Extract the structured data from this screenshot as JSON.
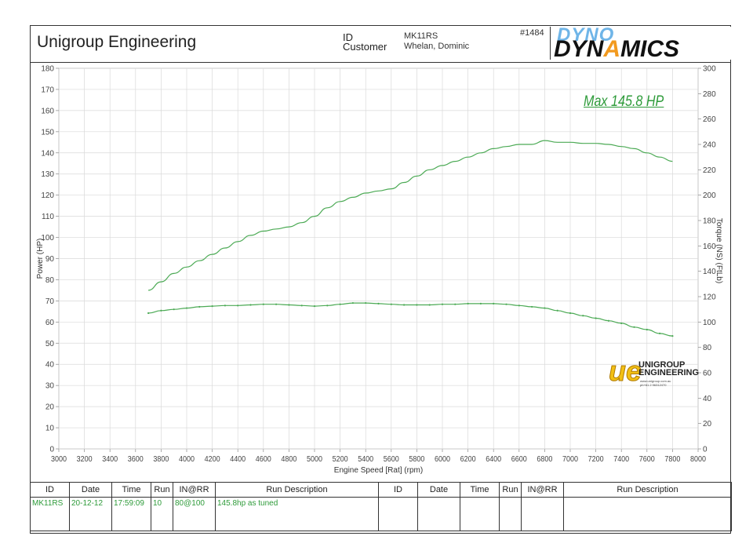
{
  "header": {
    "company": "Unigroup Engineering",
    "id_label": "ID",
    "customer_label": "Customer",
    "id_value": "MK11RS",
    "customer_value": "Whelan, Dominic",
    "run_number": "#1484",
    "logo_top": "DYNO",
    "logo_bottom_a": "DYN",
    "logo_bottom_b": "A",
    "logo_bottom_c": "MICS"
  },
  "annotation": {
    "max_label": "Max 145.8 HP"
  },
  "brand_logo": {
    "mark": "ue",
    "name_line1": "UNIGROUP",
    "name_line2": "ENGINEERING",
    "web": "www.unigroup.com.au",
    "phone": "ph+61 2 96312470"
  },
  "colors": {
    "curve": "#4caa55",
    "grid": "#d9d9d9",
    "axis_text": "#444444",
    "accent_green": "#2e9b3a"
  },
  "chart_data": {
    "type": "line",
    "xlabel": "Engine Speed [Rat] (rpm)",
    "ylabel": "Power (HP)",
    "y2label": "Torque (NS) (FtLb)",
    "xlim": [
      3000,
      8000
    ],
    "ylim": [
      0,
      180
    ],
    "y2lim": [
      0,
      300
    ],
    "grid": true,
    "x_ticks": [
      3000,
      3200,
      3400,
      3600,
      3800,
      4000,
      4200,
      4400,
      4600,
      4800,
      5000,
      5200,
      5400,
      5600,
      5800,
      6000,
      6200,
      6400,
      6600,
      6800,
      7000,
      7200,
      7400,
      7600,
      7800,
      8000
    ],
    "y_ticks": [
      0,
      10,
      20,
      30,
      40,
      50,
      60,
      70,
      80,
      90,
      100,
      110,
      120,
      130,
      140,
      150,
      160,
      170,
      180
    ],
    "y2_ticks": [
      0,
      20,
      40,
      60,
      80,
      100,
      120,
      140,
      160,
      180,
      200,
      220,
      240,
      260,
      280,
      300
    ],
    "series": [
      {
        "axis": "left",
        "x": [
          3700,
          3800,
          3900,
          4000,
          4100,
          4200,
          4300,
          4400,
          4500,
          4600,
          4700,
          4800,
          4900,
          5000,
          5100,
          5200,
          5300,
          5400,
          5500,
          5600,
          5700,
          5800,
          5900,
          6000,
          6100,
          6200,
          6300,
          6400,
          6500,
          6600,
          6700,
          6800,
          6900,
          7000,
          7100,
          7200,
          7300,
          7400,
          7500,
          7600,
          7700,
          7800
        ],
        "values": [
          75,
          79,
          83,
          86,
          89,
          92,
          95,
          98,
          101,
          103,
          104,
          105,
          107,
          110,
          114,
          117,
          119,
          121,
          122,
          123,
          126,
          129,
          132,
          134,
          136,
          138,
          140,
          142,
          143,
          144,
          144,
          145.8,
          145,
          145,
          144.5,
          144.5,
          144,
          143,
          142,
          140,
          138,
          136
        ]
      },
      {
        "axis": "right",
        "x": [
          3700,
          3800,
          3900,
          4000,
          4100,
          4200,
          4300,
          4400,
          4500,
          4600,
          4700,
          4800,
          4900,
          5000,
          5100,
          5200,
          5300,
          5400,
          5500,
          5600,
          5700,
          5800,
          5900,
          6000,
          6100,
          6200,
          6300,
          6400,
          6500,
          6600,
          6700,
          6800,
          6900,
          7000,
          7100,
          7200,
          7300,
          7400,
          7500,
          7600,
          7700,
          7800
        ],
        "values": [
          107,
          109,
          110,
          111,
          112,
          112.5,
          113,
          113,
          113.5,
          114,
          114,
          113.5,
          113,
          112.5,
          113,
          114,
          115,
          115,
          114.5,
          114,
          113.5,
          113.5,
          113.5,
          114,
          114,
          114.5,
          114.5,
          114.5,
          114,
          113,
          112,
          111,
          109,
          107,
          105,
          103,
          101,
          99,
          96,
          94,
          91,
          89
        ]
      }
    ]
  },
  "runs_table": {
    "headers": [
      "ID",
      "Date",
      "Time",
      "Run",
      "IN@RR",
      "Run Description",
      "ID",
      "Date",
      "Time",
      "Run",
      "IN@RR",
      "Run Description"
    ],
    "rows": [
      [
        "MK11RS",
        "20-12-12",
        "17:59:09",
        "10",
        "80@100",
        "145.8hp as tuned",
        "",
        "",
        "",
        "",
        "",
        ""
      ]
    ]
  }
}
